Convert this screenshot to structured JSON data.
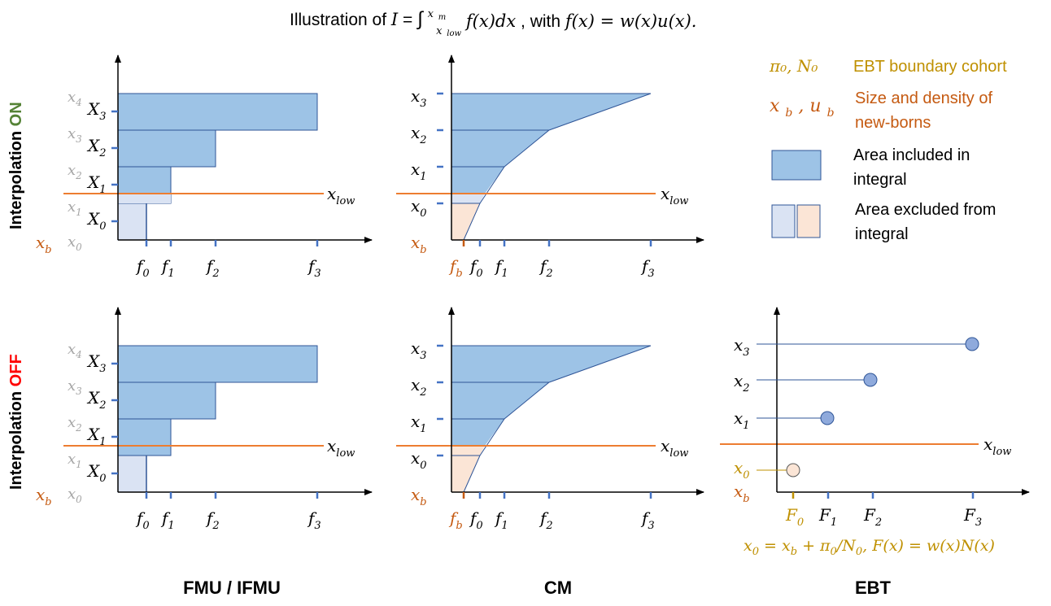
{
  "title": {
    "prefix": "Illustration of ",
    "formula_I": "I",
    "formula_eq": " = ",
    "integral": "∫",
    "upper": "x",
    "upper_sub": "m",
    "lower": "x",
    "lower_sub": "low",
    "integrand": " f(x)dx",
    "mid": ", with ",
    "fdef": "f(x) = w(x)u(x).",
    "suffix": ""
  },
  "rows": {
    "on_prefix": "Interpolation ",
    "on_word": "ON",
    "off_prefix": "Interpolation ",
    "off_word": "OFF"
  },
  "columns": {
    "fmu": "FMU / IFMU",
    "cm": "CM",
    "ebt": "EBT"
  },
  "labels": {
    "x_letter": "x",
    "X_letter": "X",
    "f_letter": "f",
    "F_letter": "F",
    "sub_0": "0",
    "sub_1": "1",
    "sub_2": "2",
    "sub_3": "3",
    "sub_4": "4",
    "sub_b": "b",
    "sub_low": "low"
  },
  "legend": {
    "boundary_symbol": "π₀, N₀",
    "boundary_text": "EBT boundary cohort",
    "newborn_symbol_x": "x",
    "newborn_symbol_sep": ", ",
    "newborn_symbol_u": "u",
    "newborn_text_1": "Size and density of",
    "newborn_text_2": "new-borns",
    "included_text_1": "Area included in",
    "included_text_2": "integral",
    "excluded_text_1": "Area excluded from",
    "excluded_text_2": "integral"
  },
  "ebt_formula": {
    "lhs": "x",
    "lhs_sub": "0",
    "eq": " = ",
    "xb": "x",
    "xb_sub": "b",
    "plus": " +  π",
    "pi_sub": "0",
    "slash": "/N",
    "n_sub": "0",
    "rest": ", F(x) = w(x)N(x)"
  },
  "colors": {
    "included_fill": "#9dc3e6",
    "included_stroke": "#2f5597",
    "excluded_blue": "#dae3f3",
    "excluded_orange": "#fbe5d6",
    "xlow_line": "#ed7d31",
    "newborn": "#c55a11",
    "boundary": "#bf9000",
    "on_green": "#548235",
    "off_red": "#ff0000",
    "tick": "#4472c4",
    "grey": "#a6a6a6"
  },
  "chart_data": [
    {
      "type": "diagram",
      "panel": "FMU / IFMU, interpolation ON",
      "bins_edges": [
        "x0",
        "x1",
        "x2",
        "x3",
        "x4"
      ],
      "nodes": [
        "X0",
        "X1",
        "X2",
        "X3"
      ],
      "f_ticks": [
        "f0",
        "f1",
        "f2",
        "f3"
      ],
      "threshold": "xlow"
    },
    {
      "type": "diagram",
      "panel": "CM, interpolation ON",
      "nodes": [
        "x0",
        "x1",
        "x2",
        "x3"
      ],
      "f_ticks": [
        "fb",
        "f0",
        "f1",
        "f2",
        "f3"
      ],
      "threshold": "xlow"
    },
    {
      "type": "diagram",
      "panel": "FMU / IFMU, interpolation OFF",
      "bins_edges": [
        "x0",
        "x1",
        "x2",
        "x3",
        "x4"
      ],
      "nodes": [
        "X0",
        "X1",
        "X2",
        "X3"
      ],
      "f_ticks": [
        "f0",
        "f1",
        "f2",
        "f3"
      ],
      "threshold": "xlow"
    },
    {
      "type": "diagram",
      "panel": "CM, interpolation OFF",
      "nodes": [
        "x0",
        "x1",
        "x2",
        "x3"
      ],
      "f_ticks": [
        "fb",
        "f0",
        "f1",
        "f2",
        "f3"
      ],
      "threshold": "xlow"
    },
    {
      "type": "scatter",
      "panel": "EBT, interpolation OFF",
      "points": [
        "x0",
        "x1",
        "x2",
        "x3"
      ],
      "F_ticks": [
        "F0",
        "F1",
        "F2",
        "F3"
      ],
      "threshold": "xlow"
    }
  ]
}
